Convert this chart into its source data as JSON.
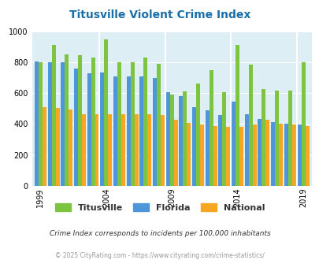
{
  "title": "Titusville Violent Crime Index",
  "title_color": "#1a6ea8",
  "subtitle": "Crime Index corresponds to incidents per 100,000 inhabitants",
  "footer": "© 2025 CityRating.com - https://www.cityrating.com/crime-statistics/",
  "years": [
    1999,
    2000,
    2001,
    2002,
    2003,
    2004,
    2005,
    2006,
    2007,
    2008,
    2009,
    2010,
    2011,
    2012,
    2013,
    2014,
    2015,
    2016,
    2017,
    2018,
    2019
  ],
  "titusville": [
    800,
    910,
    850,
    845,
    830,
    945,
    800,
    800,
    830,
    790,
    590,
    610,
    660,
    750,
    605,
    910,
    785,
    625,
    615,
    615,
    800
  ],
  "florida": [
    805,
    800,
    800,
    760,
    730,
    735,
    710,
    710,
    710,
    695,
    605,
    580,
    510,
    490,
    460,
    545,
    465,
    435,
    410,
    400,
    395
  ],
  "national": [
    510,
    505,
    495,
    465,
    465,
    465,
    465,
    465,
    465,
    460,
    430,
    405,
    395,
    385,
    380,
    380,
    395,
    430,
    400,
    395,
    385
  ],
  "titusville_color": "#7dc540",
  "florida_color": "#4f96d8",
  "national_color": "#f5a623",
  "bg_color": "#ddeef5",
  "ylim": [
    0,
    1000
  ],
  "yticks": [
    0,
    200,
    400,
    600,
    800,
    1000
  ],
  "xtick_years": [
    1999,
    2004,
    2009,
    2014,
    2019
  ],
  "legend_labels": [
    "Titusville",
    "Florida",
    "National"
  ],
  "subtitle_color": "#333333",
  "footer_color": "#999999"
}
